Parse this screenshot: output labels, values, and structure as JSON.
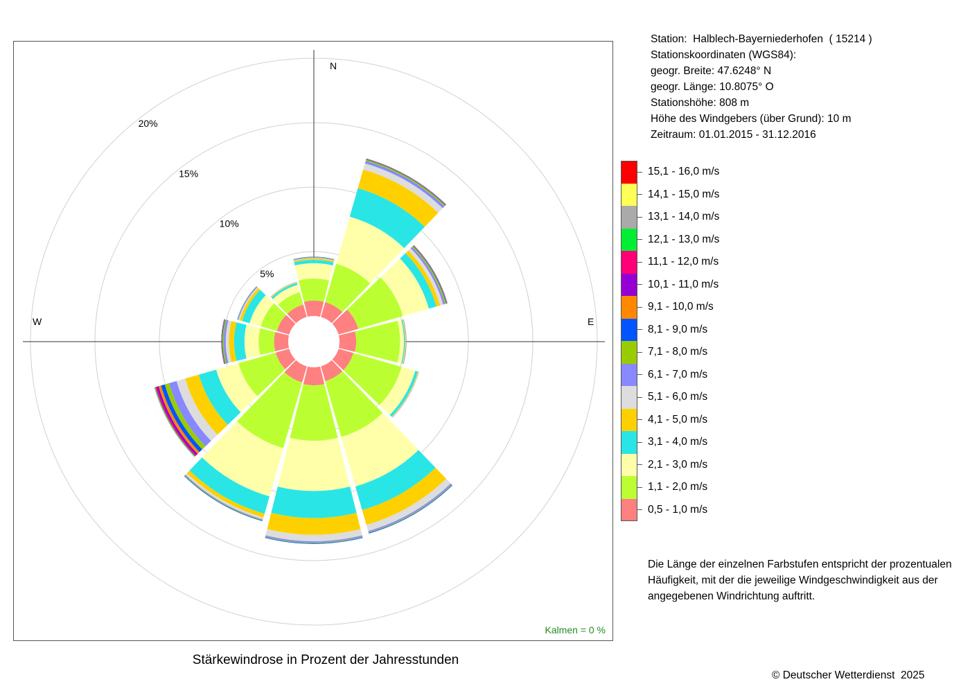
{
  "station_info": {
    "lines": [
      "Station:  Halblech-Bayerniederhofen  ( 15214 )",
      "Stationskoordinaten (WGS84):",
      "geogr. Breite: 47.6248° N",
      "geogr. Länge: 10.8075° O",
      "Stationshöhe: 808 m",
      "Höhe des Windgebers (über Grund): 10 m",
      "Zeitraum: 01.01.2015 - 31.12.2016"
    ]
  },
  "legend": {
    "items": [
      {
        "label": "15,1 - 16,0 m/s",
        "color": "#ff0000"
      },
      {
        "label": "14,1 - 15,0 m/s",
        "color": "#ffff55"
      },
      {
        "label": "13,1 - 14,0 m/s",
        "color": "#aaaaaa"
      },
      {
        "label": "12,1 - 13,0 m/s",
        "color": "#00ee33"
      },
      {
        "label": "11,1 - 12,0 m/s",
        "color": "#ff0077"
      },
      {
        "label": "10,1 - 11,0 m/s",
        "color": "#9400d3"
      },
      {
        "label": "9,1 - 10,0 m/s",
        "color": "#ff8800"
      },
      {
        "label": "8,1 - 9,0 m/s",
        "color": "#0055ff"
      },
      {
        "label": "7,1 - 8,0 m/s",
        "color": "#99cc00"
      },
      {
        "label": "6,1 - 7,0 m/s",
        "color": "#8888ff"
      },
      {
        "label": "5,1 - 6,0 m/s",
        "color": "#dddddd"
      },
      {
        "label": "4,1 - 5,0 m/s",
        "color": "#ffd000"
      },
      {
        "label": "3,1 - 4,0 m/s",
        "color": "#2ae5e5"
      },
      {
        "label": "2,1 - 3,0 m/s",
        "color": "#ffffaa"
      },
      {
        "label": "1,1 - 2,0 m/s",
        "color": "#bbff33"
      },
      {
        "label": "0,5 - 1,0 m/s",
        "color": "#ff8080"
      }
    ]
  },
  "note": "Die Länge der einzelnen Farbstufen entspricht der prozentualen Häufigkeit, mit der die jeweilige Windgeschwindigkeit aus der angegebenen Windrichtung auftritt.",
  "chart_title": "Stärkewindrose in Prozent der Jahresstunden",
  "copyright": "© Deutscher Wetterdienst  2025",
  "chart_data": {
    "type": "windrose",
    "title": "Stärkewindrose in Prozent der Jahresstunden",
    "compass_labels": {
      "N": "N",
      "E": "E",
      "W": "W"
    },
    "ring_labels": [
      "5%",
      "10%",
      "15%",
      "20%"
    ],
    "ring_values": [
      5,
      10,
      15,
      20
    ],
    "calm_label": "Kalmen  =  0 %",
    "calm_color": "#228b22",
    "speed_classes": [
      "0,5 - 1,0 m/s",
      "1,1 - 2,0 m/s",
      "2,1 - 3,0 m/s",
      "3,1 - 4,0 m/s",
      "4,1 - 5,0 m/s",
      "5,1 - 6,0 m/s",
      "6,1 - 7,0 m/s",
      "7,1 - 8,0 m/s",
      "8,1 - 9,0 m/s",
      "9,1 - 10,0 m/s",
      "10,1 - 11,0 m/s",
      "11,1 - 12,0 m/s",
      "12,1 - 13,0 m/s",
      "13,1 - 14,0 m/s",
      "14,1 - 15,0 m/s",
      "15,1 - 16,0 m/s"
    ],
    "colors": [
      "#ff8080",
      "#bbff33",
      "#ffffaa",
      "#2ae5e5",
      "#ffd000",
      "#dddddd",
      "#8888ff",
      "#99cc00",
      "#0055ff",
      "#ff8800",
      "#9400d3",
      "#ff0077",
      "#00ee33",
      "#aaaaaa",
      "#ffff55",
      "#ff0000"
    ],
    "directions": [
      0,
      30,
      60,
      90,
      120,
      150,
      180,
      210,
      240,
      270,
      300,
      330
    ],
    "cumulative_percent": [
      [
        1.2,
        2.9,
        4.1,
        4.35,
        4.45,
        4.5,
        4.55,
        4.58,
        4.6,
        4.6,
        4.6,
        4.6,
        4.6,
        4.6,
        4.6,
        4.6
      ],
      [
        1.2,
        4.3,
        8.1,
        10.4,
        11.9,
        12.4,
        12.6,
        12.7,
        12.75,
        12.78,
        12.8,
        12.8,
        12.8,
        12.8,
        12.8,
        12.8
      ],
      [
        1.6,
        5.2,
        7.3,
        7.9,
        8.2,
        8.45,
        8.6,
        8.7,
        8.75,
        8.78,
        8.8,
        8.8,
        8.8,
        8.8,
        8.8,
        8.8
      ],
      [
        1.3,
        4.7,
        5.0,
        5.08,
        5.12,
        5.15,
        5.17,
        5.18,
        5.19,
        5.2,
        5.2,
        5.2,
        5.2,
        5.2,
        5.2,
        5.2
      ],
      [
        1.2,
        5.1,
        6.2,
        6.4,
        6.45,
        6.48,
        6.5,
        6.5,
        6.5,
        6.5,
        6.5,
        6.5,
        6.5,
        6.5,
        6.5,
        6.5
      ],
      [
        1.2,
        5.7,
        9.7,
        11.6,
        12.8,
        13.3,
        13.4,
        13.45,
        13.5,
        13.5,
        13.5,
        13.5,
        13.5,
        13.5,
        13.5,
        13.5
      ],
      [
        1.4,
        5.7,
        9.6,
        11.7,
        13.0,
        13.5,
        13.6,
        13.65,
        13.7,
        13.7,
        13.7,
        13.7,
        13.7,
        13.7,
        13.7,
        13.7
      ],
      [
        1.3,
        6.6,
        10.5,
        11.9,
        12.2,
        12.35,
        12.4,
        12.45,
        12.5,
        12.5,
        12.5,
        12.5,
        12.5,
        12.5,
        12.5,
        12.5
      ],
      [
        1.1,
        4.1,
        5.9,
        7.3,
        8.4,
        9.1,
        9.7,
        10.05,
        10.35,
        10.55,
        10.7,
        10.8,
        10.85,
        10.9,
        10.9,
        10.9
      ],
      [
        1.1,
        2.3,
        3.4,
        4.2,
        4.6,
        4.85,
        5.0,
        5.1,
        5.15,
        5.18,
        5.2,
        5.2,
        5.2,
        5.2,
        5.2,
        5.2
      ],
      [
        1.0,
        2.3,
        3.2,
        3.8,
        4.0,
        4.1,
        4.15,
        4.18,
        4.2,
        4.2,
        4.2,
        4.2,
        4.2,
        4.2,
        4.2,
        4.2
      ],
      [
        1.0,
        2.0,
        2.6,
        2.75,
        2.8,
        2.82,
        2.84,
        2.85,
        2.85,
        2.85,
        2.85,
        2.85,
        2.85,
        2.85,
        2.85,
        2.85
      ]
    ]
  }
}
